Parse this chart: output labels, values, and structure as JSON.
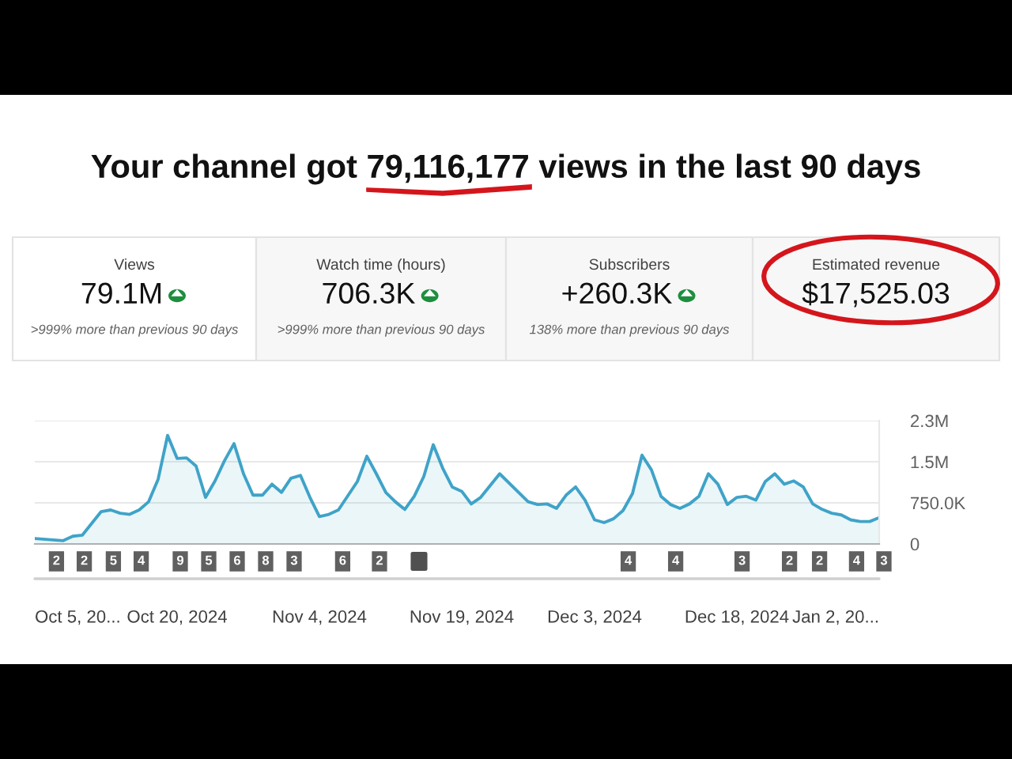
{
  "chart_data": {
    "type": "area",
    "title": "Your channel got 79,116,177 views in the last 90 days",
    "annotations": [
      "Views",
      "79.1M",
      ">999% more than previous 90 days",
      "Watch time (hours)",
      "706.3K",
      ">999% more than previous 90 days",
      "Subscribers",
      "+260.3K",
      "138% more than previous 90 days",
      "Estimated revenue",
      "$17,525.03",
      "2",
      "2",
      "5",
      "4",
      "9",
      "5",
      "6",
      "8",
      "3",
      "6",
      "2",
      "4",
      "4",
      "3",
      "2",
      "2",
      "4",
      "3"
    ],
    "x": [
      "2024-10-05",
      "2024-10-08",
      "2024-10-09",
      "2024-10-10",
      "2024-10-12",
      "2024-10-13",
      "2024-10-14",
      "2024-10-15",
      "2024-10-16",
      "2024-10-17",
      "2024-10-18",
      "2024-10-19",
      "2024-10-20",
      "2024-10-21",
      "2024-10-22",
      "2024-10-23",
      "2024-10-24",
      "2024-10-25",
      "2024-10-26",
      "2024-10-27",
      "2024-10-28",
      "2024-10-29",
      "2024-10-30",
      "2024-10-31",
      "2024-11-01",
      "2024-11-02",
      "2024-11-03",
      "2024-11-04",
      "2024-11-05",
      "2024-11-06",
      "2024-11-08",
      "2024-11-09",
      "2024-11-10",
      "2024-11-11",
      "2024-11-12",
      "2024-11-13",
      "2024-11-14",
      "2024-11-15",
      "2024-11-16",
      "2024-11-17",
      "2024-11-18",
      "2024-11-19",
      "2024-11-20",
      "2024-11-21",
      "2024-11-23",
      "2024-11-26",
      "2024-11-27",
      "2024-11-28",
      "2024-11-29",
      "2024-11-30",
      "2024-12-01",
      "2024-12-02",
      "2024-12-03",
      "2024-12-04",
      "2024-12-05",
      "2024-12-06",
      "2024-12-07",
      "2024-12-08",
      "2024-12-09",
      "2024-12-10",
      "2024-12-11",
      "2024-12-12",
      "2024-12-13",
      "2024-12-14",
      "2024-12-15",
      "2024-12-16",
      "2024-12-17",
      "2024-12-18",
      "2024-12-19",
      "2024-12-20",
      "2024-12-21",
      "2024-12-22",
      "2024-12-23",
      "2024-12-24",
      "2024-12-25",
      "2024-12-26",
      "2024-12-27",
      "2024-12-28",
      "2024-12-29",
      "2024-12-30",
      "2024-12-31",
      "2025-01-01",
      "2025-01-02"
    ],
    "series": [
      {
        "color": "#3fa3c8",
        "values": [
          100000,
          60000,
          140000,
          160000,
          590000,
          620000,
          560000,
          540000,
          620000,
          770000,
          1180000,
          1980000,
          1560000,
          1570000,
          1420000,
          850000,
          1150000,
          1520000,
          1830000,
          1280000,
          890000,
          890000,
          1090000,
          940000,
          1200000,
          1250000,
          850000,
          500000,
          540000,
          620000,
          1140000,
          1600000,
          1280000,
          940000,
          770000,
          630000,
          870000,
          1230000,
          1810000,
          1380000,
          1040000,
          960000,
          730000,
          850000,
          1280000,
          770000,
          720000,
          730000,
          650000,
          890000,
          1040000,
          800000,
          440000,
          390000,
          460000,
          610000,
          920000,
          1620000,
          1350000,
          870000,
          720000,
          650000,
          730000,
          870000,
          1280000,
          1090000,
          720000,
          850000,
          870000,
          800000,
          1140000,
          1280000,
          1090000,
          1150000,
          1040000,
          730000,
          630000,
          560000,
          530000,
          440000,
          410000,
          410000,
          480000
        ]
      }
    ],
    "xlim": [
      "2024-10-05",
      "2025-01-02"
    ],
    "xticks": [
      {
        "value": "2024-10-05",
        "label": "Oct 5, 20..."
      },
      {
        "value": "2024-10-20",
        "label": "Oct 20, 2024"
      },
      {
        "value": "2024-11-04",
        "label": "Nov 4, 2024"
      },
      {
        "value": "2024-11-19",
        "label": "Nov 19, 2024"
      },
      {
        "value": "2024-12-03",
        "label": "Dec 3, 2024"
      },
      {
        "value": "2024-12-18",
        "label": "Dec 18, 2024"
      },
      {
        "value": "2025-01-02",
        "label": "Jan 2, 20..."
      }
    ],
    "ylim": [
      0,
      2250000
    ],
    "yticks": [
      0,
      {
        "value": 750000,
        "label": "750.0K"
      },
      {
        "value": 1500000,
        "label": "1.5M"
      },
      {
        "value": 2250000,
        "label": "2.3M"
      }
    ],
    "grid": "y",
    "legend": false
  }
}
